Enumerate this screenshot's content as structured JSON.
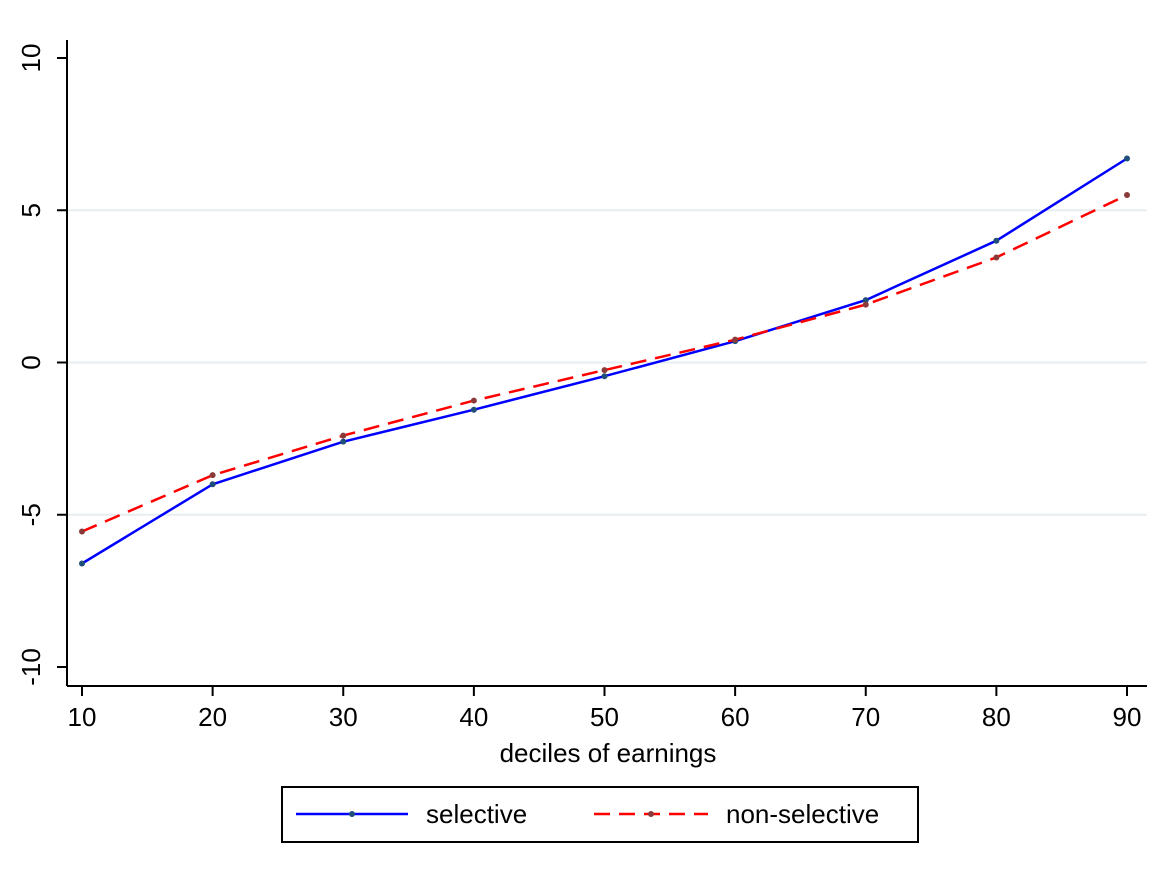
{
  "chart_data": {
    "type": "line",
    "title": "",
    "xlabel": "deciles of earnings",
    "ylabel": "",
    "x": [
      10,
      20,
      30,
      40,
      50,
      60,
      70,
      80,
      90
    ],
    "xlim": [
      10,
      90
    ],
    "ylim": [
      -10,
      10
    ],
    "xticks": [
      10,
      20,
      30,
      40,
      50,
      60,
      70,
      80,
      90
    ],
    "yticks": [
      -10,
      -5,
      0,
      5,
      10
    ],
    "grid": "horizontal",
    "legend_position": "bottom",
    "series": [
      {
        "name": "selective",
        "values": [
          -6.6,
          -4.0,
          -2.6,
          -1.55,
          -0.45,
          0.7,
          2.05,
          4.0,
          6.7
        ],
        "color": "#0000ff",
        "dash": "solid"
      },
      {
        "name": "non-selective",
        "values": [
          -5.55,
          -3.7,
          -2.4,
          -1.25,
          -0.25,
          0.75,
          1.9,
          3.45,
          5.5
        ],
        "color": "#ff0000",
        "dash": "dashed"
      }
    ]
  }
}
